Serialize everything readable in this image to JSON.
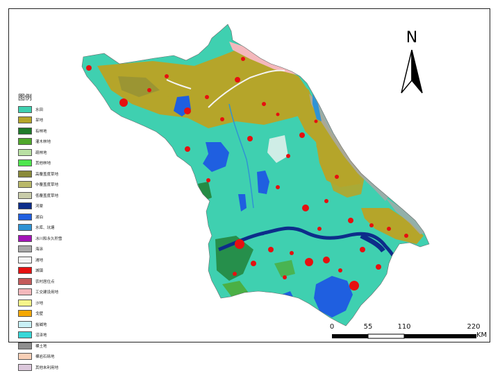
{
  "legend": {
    "title": "图例",
    "items": [
      {
        "label": "水田",
        "color": "#3fd0b0"
      },
      {
        "label": "旱地",
        "color": "#b5a52a"
      },
      {
        "label": "有林地",
        "color": "#1f7a2a"
      },
      {
        "label": "灌木林地",
        "color": "#4fa82b"
      },
      {
        "label": "疏林地",
        "color": "#b9e0a4"
      },
      {
        "label": "其他林地",
        "color": "#4ee64e"
      },
      {
        "label": "高覆盖度草地",
        "color": "#8a8a3a"
      },
      {
        "label": "中覆盖度草地",
        "color": "#b9b86a"
      },
      {
        "label": "低覆盖度草地",
        "color": "#c9ccaa"
      },
      {
        "label": "河渠",
        "color": "#0d2d8a"
      },
      {
        "label": "湖泊",
        "color": "#1f5fe0"
      },
      {
        "label": "水库、坑塘",
        "color": "#2f93d4"
      },
      {
        "label": "冰川和永久积雪",
        "color": "#a314b8"
      },
      {
        "label": "海涂",
        "color": "#a8a8a8"
      },
      {
        "label": "滩地",
        "color": "#f4f4f4"
      },
      {
        "label": "城镇",
        "color": "#e61010"
      },
      {
        "label": "农村居住点",
        "color": "#c45a5a"
      },
      {
        "label": "工交建设用地",
        "color": "#f4b8bc"
      },
      {
        "label": "沙地",
        "color": "#f6f58a"
      },
      {
        "label": "戈壁",
        "color": "#f5a800"
      },
      {
        "label": "盐碱地",
        "color": "#c9f1f7"
      },
      {
        "label": "沼泽地",
        "color": "#38d8d8"
      },
      {
        "label": "裸土地",
        "color": "#8f8f8f"
      },
      {
        "label": "裸岩石砾地",
        "color": "#f8cfb6"
      },
      {
        "label": "其他未利用地",
        "color": "#dcc8dc"
      }
    ]
  },
  "north_arrow": {
    "label": "N"
  },
  "scale_bar": {
    "ticks": [
      "0",
      "55",
      "110",
      "220"
    ],
    "unit": "KM"
  }
}
